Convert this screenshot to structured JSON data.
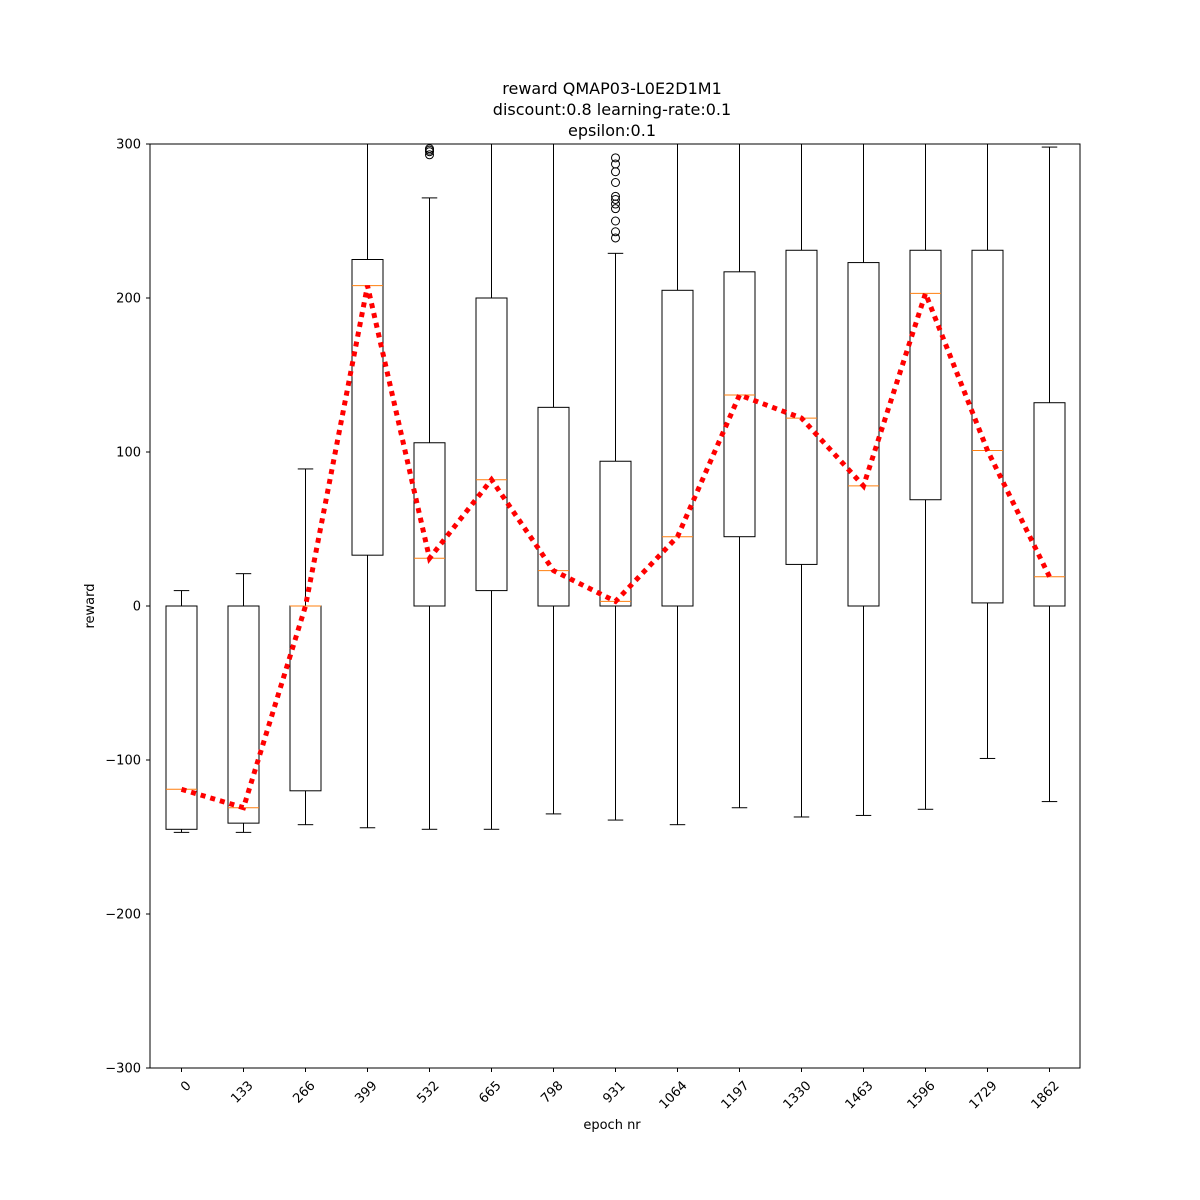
{
  "chart_data": {
    "type": "box",
    "title_lines": [
      "reward QMAP03-L0E2D1M1",
      "discount:0.8 learning-rate:0.1",
      "epsilon:0.1"
    ],
    "xlabel": "epoch nr",
    "ylabel": "reward",
    "ylim": [
      -300,
      300
    ],
    "yticks": [
      -300,
      -200,
      -100,
      0,
      100,
      200,
      300
    ],
    "ytick_labels": [
      "−300",
      "−200",
      "−100",
      "0",
      "100",
      "200",
      "300"
    ],
    "categories": [
      "0",
      "133",
      "266",
      "399",
      "532",
      "665",
      "798",
      "931",
      "1064",
      "1197",
      "1330",
      "1463",
      "1596",
      "1729",
      "1862"
    ],
    "boxes": [
      {
        "whislo": -147,
        "q1": -145,
        "med": -119,
        "q3": 0,
        "whishi": 10,
        "fliers": []
      },
      {
        "whislo": -147,
        "q1": -141,
        "med": -131,
        "q3": 0,
        "whishi": 21,
        "fliers": []
      },
      {
        "whislo": -142,
        "q1": -120,
        "med": 0,
        "q3": 0,
        "whishi": 89,
        "fliers": []
      },
      {
        "whislo": -144,
        "q1": 33,
        "med": 208,
        "q3": 225,
        "whishi": 300,
        "fliers": []
      },
      {
        "whislo": -145,
        "q1": 0,
        "med": 31,
        "q3": 106,
        "whishi": 265,
        "fliers": [
          293,
          295,
          296,
          297
        ]
      },
      {
        "whislo": -145,
        "q1": 10,
        "med": 82,
        "q3": 200,
        "whishi": 300,
        "fliers": []
      },
      {
        "whislo": -135,
        "q1": 0,
        "med": 23,
        "q3": 129,
        "whishi": 300,
        "fliers": []
      },
      {
        "whislo": -139,
        "q1": 0,
        "med": 3,
        "q3": 94,
        "whishi": 229,
        "fliers": [
          239,
          243,
          250,
          258,
          261,
          264,
          266,
          275,
          282,
          287,
          291
        ]
      },
      {
        "whislo": -142,
        "q1": 0,
        "med": 45,
        "q3": 205,
        "whishi": 300,
        "fliers": []
      },
      {
        "whislo": -131,
        "q1": 45,
        "med": 137,
        "q3": 217,
        "whishi": 300,
        "fliers": []
      },
      {
        "whislo": -137,
        "q1": 27,
        "med": 122,
        "q3": 231,
        "whishi": 300,
        "fliers": []
      },
      {
        "whislo": -136,
        "q1": 0,
        "med": 78,
        "q3": 223,
        "whishi": 300,
        "fliers": []
      },
      {
        "whislo": -132,
        "q1": 69,
        "med": 203,
        "q3": 231,
        "whishi": 300,
        "fliers": []
      },
      {
        "whislo": -99,
        "q1": 2,
        "med": 101,
        "q3": 231,
        "whishi": 300,
        "fliers": []
      },
      {
        "whislo": -127,
        "q1": 0,
        "med": 19,
        "q3": 132,
        "whishi": 298,
        "fliers": []
      }
    ],
    "trend_line": {
      "values": [
        -119,
        -131,
        0,
        208,
        31,
        82,
        23,
        3,
        45,
        137,
        122,
        78,
        203,
        101,
        19
      ],
      "color": "#ff0000",
      "style": "dotted"
    },
    "colors": {
      "box": "#000000",
      "median": "#ff7f0e",
      "trend": "#ff0000"
    },
    "grid": false
  }
}
